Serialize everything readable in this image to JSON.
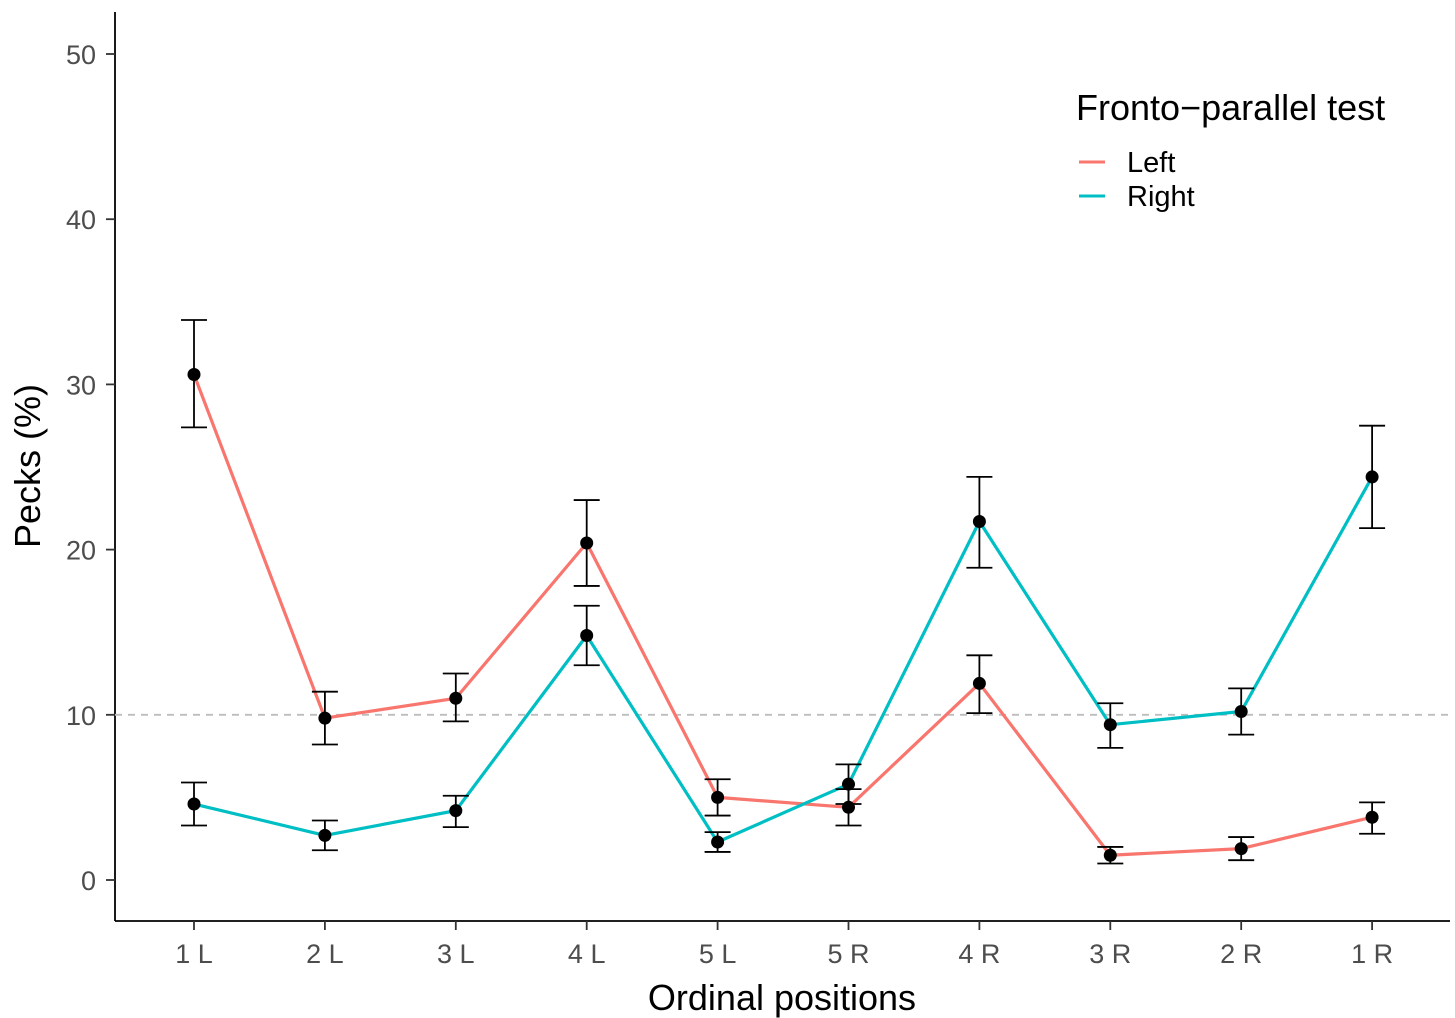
{
  "chart_data": {
    "type": "line",
    "xlabel": "Ordinal positions",
    "ylabel": "Pecks (%)",
    "categories": [
      "1 L",
      "2 L",
      "3 L",
      "4 L",
      "5 L",
      "5 R",
      "4 R",
      "3 R",
      "2 R",
      "1 R"
    ],
    "ylim": [
      -2.5,
      52.5
    ],
    "yticks": [
      0,
      10,
      20,
      30,
      40,
      50
    ],
    "reference_line": {
      "y": 10,
      "style": "dashed",
      "color": "#bdbdbd"
    },
    "grid": false,
    "legend": {
      "title": "Fronto−parallel test",
      "position": "top-right"
    },
    "series": [
      {
        "name": "Left",
        "color": "#F8766D",
        "values": [
          30.6,
          9.8,
          11.0,
          20.4,
          5.0,
          4.4,
          11.9,
          1.5,
          1.9,
          3.8
        ],
        "error_low": [
          27.4,
          8.2,
          9.6,
          17.8,
          3.9,
          3.3,
          10.1,
          1.0,
          1.2,
          2.8
        ],
        "error_high": [
          33.9,
          11.4,
          12.5,
          23.0,
          6.1,
          5.5,
          13.6,
          2.0,
          2.6,
          4.7
        ]
      },
      {
        "name": "Right",
        "color": "#00BFC4",
        "values": [
          4.6,
          2.7,
          4.2,
          14.8,
          2.3,
          5.8,
          21.7,
          9.4,
          10.2,
          24.4
        ],
        "error_low": [
          3.3,
          1.8,
          3.2,
          13.0,
          1.7,
          4.6,
          18.9,
          8.0,
          8.8,
          21.3
        ],
        "error_high": [
          5.9,
          3.6,
          5.1,
          16.6,
          2.9,
          7.0,
          24.4,
          10.7,
          11.6,
          27.5
        ]
      }
    ]
  }
}
